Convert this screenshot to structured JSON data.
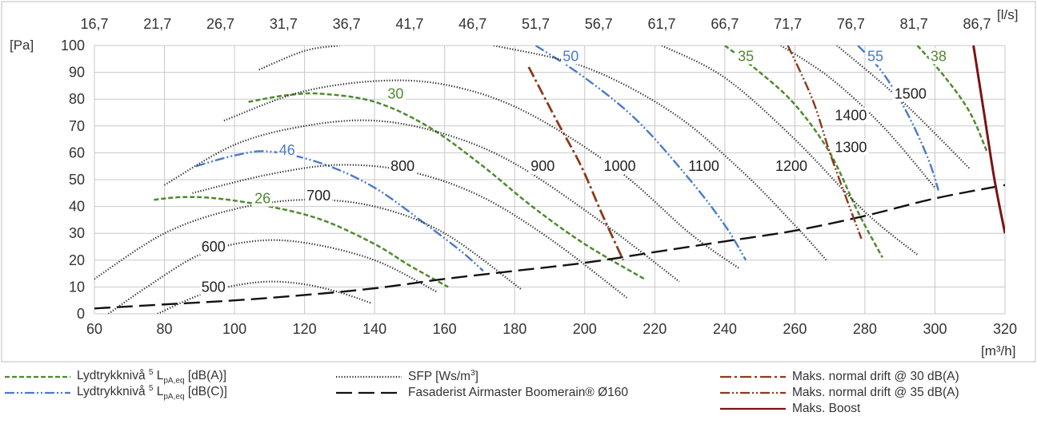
{
  "chart_data": {
    "type": "line",
    "xlabel": "[m³/h]",
    "ylabel": "[Pa]",
    "x2label": "[l/s]",
    "xlim": [
      60,
      320
    ],
    "ylim": [
      0,
      100
    ],
    "x_ticks": [
      60,
      80,
      100,
      120,
      140,
      160,
      180,
      200,
      220,
      240,
      260,
      280,
      300,
      320
    ],
    "y_ticks": [
      0,
      10,
      20,
      30,
      40,
      50,
      60,
      70,
      80,
      90,
      100
    ],
    "x2_ticks": [
      "16,7",
      "21,7",
      "26,7",
      "31,7",
      "36,7",
      "41,7",
      "46,7",
      "51,7",
      "56,7",
      "61,7",
      "66,7",
      "71,7",
      "76,7",
      "81,7",
      "86,7"
    ],
    "grid": true,
    "legend_position": "bottom",
    "series": [
      {
        "name": "Lydtrykkniva_A",
        "style": "dashed",
        "color": "#4f8a2e",
        "curves": [
          {
            "label": "26",
            "points": [
              [
                77,
                42.5
              ],
              [
                85,
                43.5
              ],
              [
                95,
                43
              ],
              [
                110,
                40
              ],
              [
                125,
                35
              ],
              [
                140,
                26
              ],
              [
                150,
                18
              ],
              [
                161,
                10
              ]
            ]
          },
          {
            "label": "30",
            "points": [
              [
                104,
                79
              ],
              [
                115,
                81.5
              ],
              [
                125,
                82
              ],
              [
                140,
                79
              ],
              [
                155,
                70
              ],
              [
                170,
                56
              ],
              [
                185,
                40
              ],
              [
                200,
                26
              ],
              [
                217,
                13
              ]
            ]
          },
          {
            "label": "35",
            "points": [
              [
                240,
                100
              ],
              [
                250,
                90
              ],
              [
                260,
                78
              ],
              [
                270,
                60
              ],
              [
                278,
                38
              ],
              [
                285,
                21
              ]
            ]
          },
          {
            "label": "38",
            "points": [
              [
                295,
                100
              ],
              [
                303,
                88
              ],
              [
                310,
                75
              ],
              [
                315,
                60
              ]
            ]
          }
        ]
      },
      {
        "name": "Lydtrykkniva_C",
        "style": "dashdotdot",
        "color": "#4a7ac9",
        "curves": [
          {
            "label": "46",
            "points": [
              [
                89,
                55
              ],
              [
                100,
                59
              ],
              [
                110,
                60.5
              ],
              [
                125,
                56
              ],
              [
                140,
                47
              ],
              [
                155,
                33
              ],
              [
                165,
                23
              ],
              [
                171,
                16
              ]
            ]
          },
          {
            "label": "50",
            "points": [
              [
                186,
                100
              ],
              [
                200,
                88
              ],
              [
                215,
                72
              ],
              [
                230,
                50
              ],
              [
                240,
                33
              ],
              [
                246,
                20
              ]
            ]
          },
          {
            "label": "55",
            "points": [
              [
                278,
                100
              ],
              [
                285,
                90
              ],
              [
                292,
                75
              ],
              [
                298,
                58
              ],
              [
                301,
                46
              ]
            ]
          }
        ]
      },
      {
        "name": "SFP",
        "style": "dotted",
        "color": "#222222",
        "curves": [
          {
            "label": "500",
            "points": [
              [
                78,
                0
              ],
              [
                90,
                7
              ],
              [
                100,
                10.5
              ],
              [
                110,
                12
              ],
              [
                120,
                11
              ],
              [
                130,
                8
              ],
              [
                139,
                4
              ]
            ]
          },
          {
            "label": "600",
            "points": [
              [
                64,
                0
              ],
              [
                75,
                10
              ],
              [
                90,
                22
              ],
              [
                105,
                27
              ],
              [
                120,
                26.5
              ],
              [
                140,
                20
              ],
              [
                158,
                8
              ]
            ]
          },
          {
            "label": "700",
            "points": [
              [
                60,
                13
              ],
              [
                80,
                30
              ],
              [
                100,
                39
              ],
              [
                120,
                42.5
              ],
              [
                140,
                40
              ],
              [
                160,
                30
              ],
              [
                182,
                9
              ]
            ]
          },
          {
            "label": "800",
            "points": [
              [
                88,
                45
              ],
              [
                110,
                52
              ],
              [
                130,
                55.5
              ],
              [
                150,
                53
              ],
              [
                170,
                44
              ],
              [
                190,
                28
              ],
              [
                212,
                6
              ]
            ]
          },
          {
            "label": "900",
            "points": [
              [
                80,
                48
              ],
              [
                100,
                63
              ],
              [
                120,
                70
              ],
              [
                140,
                72
              ],
              [
                160,
                67
              ],
              [
                180,
                56
              ],
              [
                205,
                34
              ],
              [
                227,
                12
              ]
            ]
          },
          {
            "label": "1000",
            "points": [
              [
                97,
                72
              ],
              [
                120,
                83
              ],
              [
                145,
                87
              ],
              [
                165,
                84
              ],
              [
                185,
                74
              ],
              [
                210,
                53
              ],
              [
                230,
                30
              ],
              [
                244,
                17
              ]
            ]
          },
          {
            "label": "1100",
            "points": [
              [
                107,
                91
              ],
              [
                120,
                98
              ],
              [
                130,
                100
              ]
            ]
          },
          {
            "label": "1200",
            "points": [
              [
                174,
                100
              ],
              [
                200,
                92
              ],
              [
                225,
                75
              ],
              [
                245,
                53
              ],
              [
                260,
                33
              ],
              [
                269,
                20
              ]
            ]
          },
          {
            "label": "1300",
            "points": [
              [
                222,
                100
              ],
              [
                240,
                88
              ],
              [
                260,
                65
              ],
              [
                280,
                38
              ],
              [
                295,
                22
              ]
            ]
          },
          {
            "label": "1400",
            "points": [
              [
                256,
                100
              ],
              [
                270,
                88
              ],
              [
                285,
                70
              ],
              [
                300,
                47
              ]
            ]
          },
          {
            "label": "1500",
            "points": [
              [
                272,
                100
              ],
              [
                290,
                80
              ],
              [
                310,
                54
              ]
            ]
          }
        ]
      },
      {
        "name": "Fasaderist",
        "style": "longdash",
        "color": "#111111",
        "curves": [
          {
            "label": "",
            "points": [
              [
                60,
                2
              ],
              [
                80,
                3.5
              ],
              [
                100,
                5
              ],
              [
                120,
                7
              ],
              [
                140,
                9.5
              ],
              [
                160,
                13
              ],
              [
                180,
                16
              ],
              [
                200,
                19
              ],
              [
                220,
                23
              ],
              [
                240,
                27
              ],
              [
                260,
                31
              ],
              [
                280,
                36.5
              ],
              [
                300,
                43
              ],
              [
                320,
                48
              ]
            ]
          }
        ]
      },
      {
        "name": "Maks_normal_30",
        "style": "dashdot",
        "color": "#8b3a1a",
        "curves": [
          {
            "label": "",
            "points": [
              [
                184,
                92
              ],
              [
                192,
                72
              ],
              [
                199,
                55
              ],
              [
                205,
                37
              ],
              [
                211,
                20
              ]
            ]
          }
        ]
      },
      {
        "name": "Maks_normal_35",
        "style": "dashdotdot",
        "color": "#8b3a1a",
        "curves": [
          {
            "label": "",
            "points": [
              [
                258,
                100
              ],
              [
                265,
                80
              ],
              [
                270,
                60
              ],
              [
                275,
                42
              ],
              [
                279,
                28
              ]
            ]
          }
        ]
      },
      {
        "name": "Maks_Boost",
        "style": "solid",
        "color": "#7a1414",
        "curves": [
          {
            "label": "",
            "points": [
              [
                311,
                100
              ],
              [
                314,
                75
              ],
              [
                317,
                50
              ],
              [
                320,
                30
              ]
            ]
          }
        ]
      }
    ],
    "curve_labels": [
      {
        "text": "26",
        "x": 108,
        "y": 43,
        "color": "#4f8a2e"
      },
      {
        "text": "30",
        "x": 146,
        "y": 82,
        "color": "#4f8a2e"
      },
      {
        "text": "35",
        "x": 246,
        "y": 96,
        "color": "#4f8a2e"
      },
      {
        "text": "38",
        "x": 301,
        "y": 96,
        "color": "#4f8a2e"
      },
      {
        "text": "46",
        "x": 115,
        "y": 61,
        "color": "#4a7ac9"
      },
      {
        "text": "50",
        "x": 196,
        "y": 96,
        "color": "#4a7ac9"
      },
      {
        "text": "55",
        "x": 283,
        "y": 96,
        "color": "#4a7ac9"
      },
      {
        "text": "500",
        "x": 94,
        "y": 10,
        "color": "#222222"
      },
      {
        "text": "600",
        "x": 94,
        "y": 25,
        "color": "#222222"
      },
      {
        "text": "700",
        "x": 124,
        "y": 44,
        "color": "#222222"
      },
      {
        "text": "800",
        "x": 148,
        "y": 55,
        "color": "#222222"
      },
      {
        "text": "900",
        "x": 188,
        "y": 55,
        "color": "#222222"
      },
      {
        "text": "1000",
        "x": 210,
        "y": 55,
        "color": "#222222"
      },
      {
        "text": "1100",
        "x": 234,
        "y": 55,
        "color": "#222222"
      },
      {
        "text": "1200",
        "x": 259,
        "y": 55,
        "color": "#222222"
      },
      {
        "text": "1300",
        "x": 276,
        "y": 62,
        "color": "#222222"
      },
      {
        "text": "1400",
        "x": 276,
        "y": 74,
        "color": "#222222"
      },
      {
        "text": "1500",
        "x": 293,
        "y": 82,
        "color": "#222222"
      }
    ]
  },
  "legend": [
    {
      "key": "Lydtrykkniva_A",
      "text_pre": "Lydtrykknivå ",
      "sup": "5",
      "text_mid": " L",
      "sub": "pA,eq",
      "text_post": " [dB(A)]"
    },
    {
      "key": "Lydtrykkniva_C",
      "text_pre": "Lydtrykknivå ",
      "sup": "5",
      "text_mid": " L",
      "sub": "pA,eq",
      "text_post": " [dB(C)]"
    },
    {
      "key": "SFP",
      "text_pre": "SFP [Ws/m",
      "sup": "3",
      "text_mid": "]",
      "sub": "",
      "text_post": ""
    },
    {
      "key": "Fasaderist",
      "text_pre": "Fasaderist Airmaster Boomerain® Ø160",
      "sup": "",
      "text_mid": "",
      "sub": "",
      "text_post": ""
    },
    {
      "key": "Maks_normal_30",
      "text_pre": "Maks. normal drift @ 30 dB(A)",
      "sup": "",
      "text_mid": "",
      "sub": "",
      "text_post": ""
    },
    {
      "key": "Maks_normal_35",
      "text_pre": "Maks. normal drift @ 35 dB(A)",
      "sup": "",
      "text_mid": "",
      "sub": "",
      "text_post": ""
    },
    {
      "key": "Maks_Boost",
      "text_pre": "Maks. Boost",
      "sup": "",
      "text_mid": "",
      "sub": "",
      "text_post": ""
    }
  ]
}
